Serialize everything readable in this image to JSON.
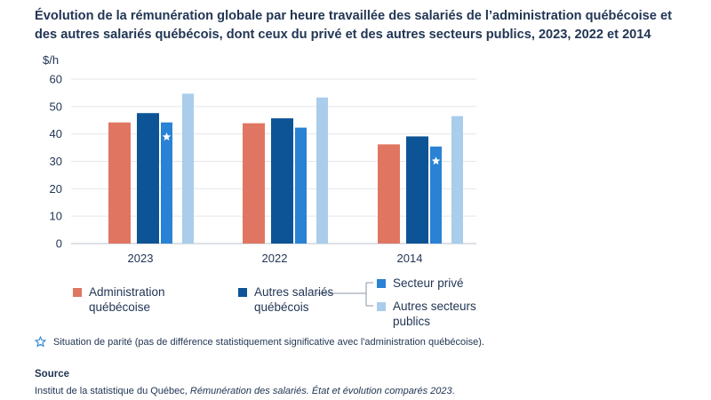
{
  "chart_data": {
    "type": "bar",
    "title": "Évolution de la rémunération globale par heure travaillée des salariés de l’administration québécoise et des autres salariés québécois, dont ceux du privé et des autres secteurs publics, 2023, 2022 et 2014",
    "ylabel": "$/h",
    "ylim": [
      0,
      60
    ],
    "yticks": [
      0,
      10,
      20,
      30,
      40,
      50,
      60
    ],
    "grid": true,
    "categories": [
      "2023",
      "2022",
      "2014"
    ],
    "series": [
      {
        "name": "Administration québécoise",
        "color": "#e07662",
        "values": [
          44.2,
          43.9,
          36.2
        ]
      },
      {
        "name": "Autres salariés québécois",
        "color": "#0d5496",
        "values": [
          47.6,
          45.7,
          39.1
        ]
      },
      {
        "name": "Secteur privé",
        "color": "#2a82d4",
        "values": [
          44.2,
          42.3,
          35.4
        ],
        "parity": [
          true,
          false,
          true
        ]
      },
      {
        "name": "Autres secteurs publics",
        "color": "#a9cdeb",
        "values": [
          54.7,
          53.3,
          46.5
        ]
      }
    ],
    "legend": {
      "administration": "Administration québécoise",
      "autres_salaries": "Autres salariés québécois",
      "secteur_prive": "Secteur privé",
      "autres_publics": "Autres secteurs publics"
    },
    "parity_note": "Situation de parité (pas de différence statistiquement significative avec l'administration québécoise)."
  },
  "source": {
    "heading": "Source",
    "text_prefix": "Institut de la statistique du Québec, ",
    "text_italic": "Rémunération des salariés. État et évolution comparés 2023",
    "text_suffix": "."
  }
}
